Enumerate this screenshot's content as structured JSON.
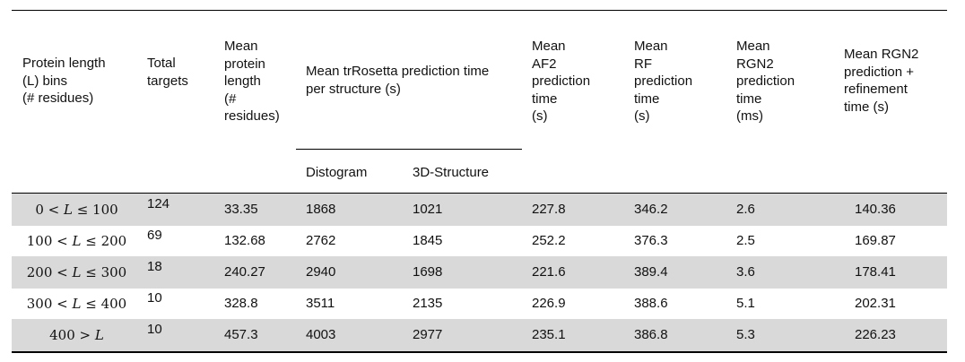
{
  "table": {
    "headers": {
      "length_bins": "Protein length\n(L) bins\n(# residues)",
      "total_targets": "Total\ntargets",
      "mean_length": "Mean\nprotein\nlength\n(#\nresidues)",
      "trrosetta_group": "Mean trRosetta prediction time\nper structure (s)",
      "distogram": "Distogram",
      "structure_3d": "3D-Structure",
      "af2": "Mean\nAF2\nprediction\ntime\n(s)",
      "rf": "Mean\nRF\nprediction\ntime\n(s)",
      "rgn2": "Mean\nRGN2\nprediction\ntime\n(ms)",
      "rgn2_refine": "Mean RGN2\nprediction +\nrefinement\ntime (s)"
    },
    "rows": [
      {
        "bin_a": "0",
        "bin_b": "100",
        "bin_op": "<",
        "bin_op2": "≤",
        "targets": "124",
        "mean_len": "33.35",
        "distogram": "1868",
        "structure": "1021",
        "af2": "227.8",
        "rf": "346.2",
        "rgn2": "2.6",
        "rgn2_ref": "140.36"
      },
      {
        "bin_a": "100",
        "bin_b": "200",
        "bin_op": "<",
        "bin_op2": "≤",
        "targets": "69",
        "mean_len": "132.68",
        "distogram": "2762",
        "structure": "1845",
        "af2": "252.2",
        "rf": "376.3",
        "rgn2": "2.5",
        "rgn2_ref": "169.87"
      },
      {
        "bin_a": "200",
        "bin_b": "300",
        "bin_op": "<",
        "bin_op2": "≤",
        "targets": "18",
        "mean_len": "240.27",
        "distogram": "2940",
        "structure": "1698",
        "af2": "221.6",
        "rf": "389.4",
        "rgn2": "3.6",
        "rgn2_ref": "178.41"
      },
      {
        "bin_a": "300",
        "bin_b": "400",
        "bin_op": "<",
        "bin_op2": "≤",
        "targets": "10",
        "mean_len": "328.8",
        "distogram": "3511",
        "structure": "2135",
        "af2": "226.9",
        "rf": "388.6",
        "rgn2": "5.1",
        "rgn2_ref": "202.31"
      },
      {
        "bin_a": "400",
        "bin_b": "",
        "bin_op": ">",
        "bin_op2": "",
        "targets": "10",
        "mean_len": "457.3",
        "distogram": "4003",
        "structure": "2977",
        "af2": "235.1",
        "rf": "386.8",
        "rgn2": "5.3",
        "rgn2_ref": "226.23"
      }
    ],
    "band_color": "#d9d9d9"
  }
}
